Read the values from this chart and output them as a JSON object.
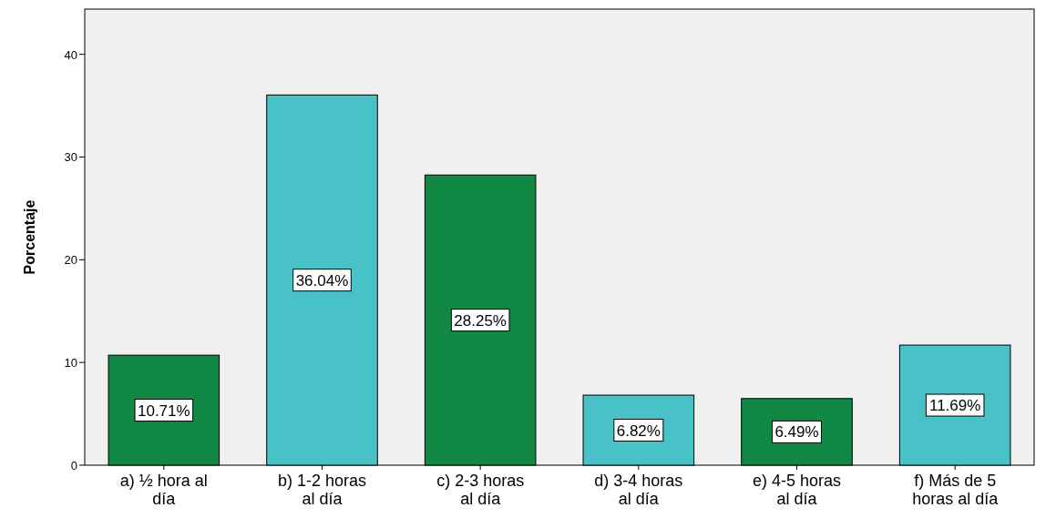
{
  "chart_data": {
    "type": "bar",
    "ylabel": "Porcentaje",
    "categories": [
      "a) ½ hora al día",
      "b) 1-2 horas al día",
      "c) 2-3 horas al día",
      "d) 3-4 horas al día",
      "e) 4-5 horas al día",
      "f) Más de 5 horas al día"
    ],
    "values": [
      10.71,
      36.04,
      28.25,
      6.82,
      6.49,
      11.69
    ],
    "value_labels": [
      "10.71%",
      "36.04%",
      "28.25%",
      "6.82%",
      "6.49%",
      "11.69%"
    ],
    "colors": [
      "#118844",
      "#48c2c6",
      "#118844",
      "#48c2c6",
      "#118844",
      "#48c2c6"
    ],
    "ylim": [
      0,
      44.4
    ],
    "yticks": [
      0,
      10,
      20,
      30,
      40
    ],
    "grid": false
  }
}
